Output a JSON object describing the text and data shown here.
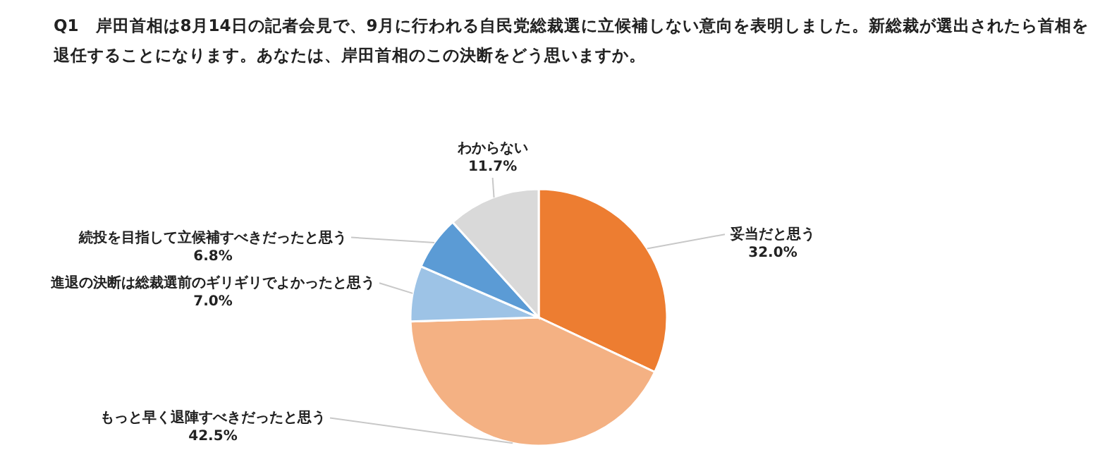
{
  "chart_data": {
    "type": "pie",
    "title": "Q1　岸田首相は8月14日の記者会見で、9月に行われる自民党総裁選に立候補しない意向を表明しました。新総裁が選出されたら首相を退任することになります。あなたは、岸田首相のこの決断をどう思いますか。",
    "categories": [
      "妥当だと思う",
      "もっと早く退陣すべきだったと思う",
      "進退の決断は総裁選前のギリギリでよかったと思う",
      "続投を目指して立候補すべきだったと思う",
      "わからない"
    ],
    "values": [
      32.0,
      42.5,
      7.0,
      6.8,
      11.7
    ],
    "colors": [
      "#ed7d31",
      "#f4b183",
      "#9dc3e6",
      "#5b9bd5",
      "#d9d9d9"
    ],
    "value_labels": [
      "32.0%",
      "42.5%",
      "7.0%",
      "6.8%",
      "11.7%"
    ]
  }
}
